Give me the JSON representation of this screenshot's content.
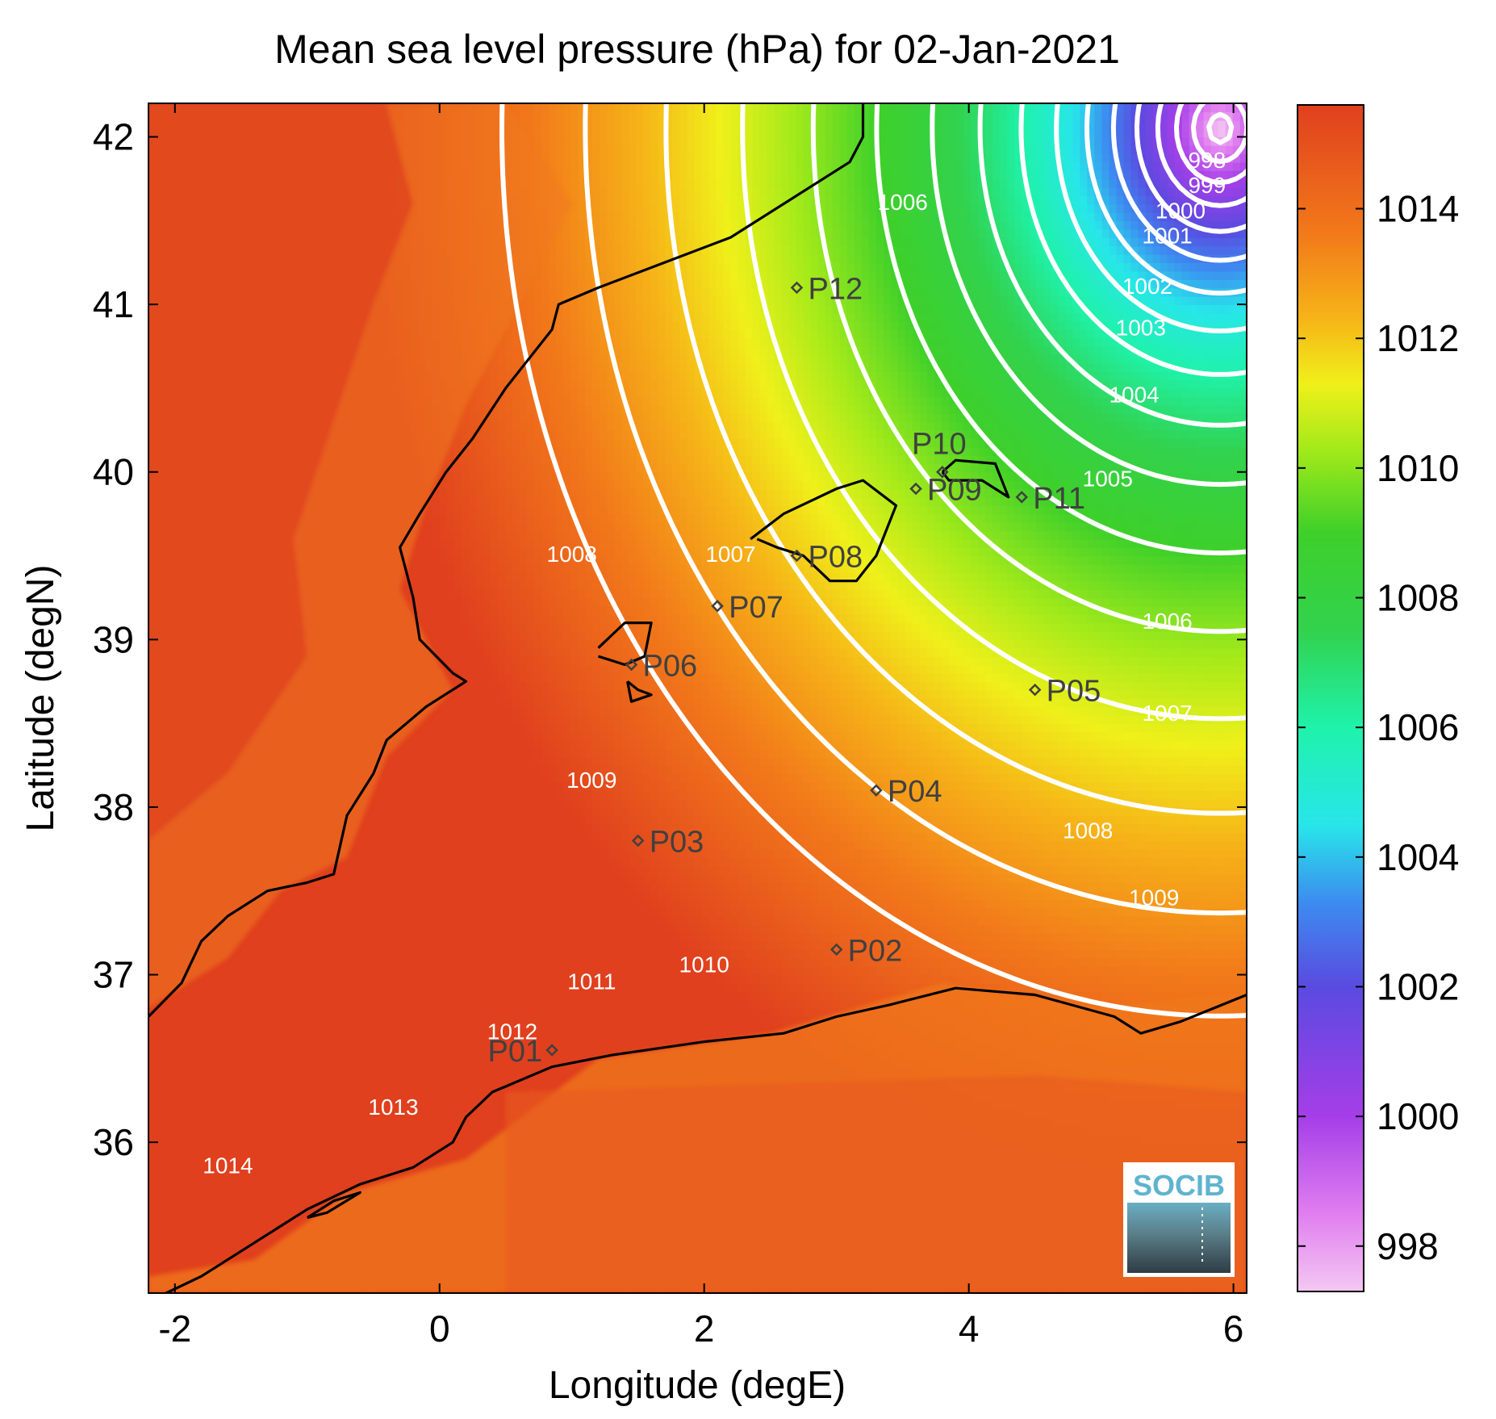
{
  "title": "Mean sea level pressure (hPa) for 02-Jan-2021",
  "x_axis": {
    "label": "Longitude (degE)",
    "range": [
      -2.2,
      6.1
    ],
    "ticks": [
      -2,
      0,
      2,
      4,
      6
    ],
    "tick_labels": [
      "-2",
      "0",
      "2",
      "4",
      "6"
    ]
  },
  "y_axis": {
    "label": "Latitude (degN)",
    "range": [
      35.1,
      42.2
    ],
    "ticks": [
      36,
      37,
      38,
      39,
      40,
      41,
      42
    ],
    "tick_labels": [
      "36",
      "37",
      "38",
      "39",
      "40",
      "41",
      "42"
    ]
  },
  "colorbar": {
    "range": [
      997.3,
      1015.6
    ],
    "ticks": [
      998,
      1000,
      1002,
      1004,
      1006,
      1008,
      1010,
      1012,
      1014
    ],
    "tick_labels": [
      "998",
      "1000",
      "1002",
      "1004",
      "1006",
      "1008",
      "1010",
      "1012",
      "1014"
    ],
    "colormap": [
      [
        997.3,
        "#f4c8f2"
      ],
      [
        998.5,
        "#e07ef0"
      ],
      [
        1000,
        "#a53ee8"
      ],
      [
        1002,
        "#5a4ae0"
      ],
      [
        1003.3,
        "#3c8cf0"
      ],
      [
        1004.5,
        "#28e6ea"
      ],
      [
        1006,
        "#1ff2aa"
      ],
      [
        1007.5,
        "#32d24e"
      ],
      [
        1009,
        "#3ed02a"
      ],
      [
        1010.3,
        "#a4ea1a"
      ],
      [
        1011.3,
        "#f0f01a"
      ],
      [
        1012.3,
        "#f6b418"
      ],
      [
        1013.6,
        "#f27a1a"
      ],
      [
        1015.6,
        "#e0401e"
      ]
    ]
  },
  "chart_data": {
    "type": "contour map",
    "title": "Mean sea level pressure (hPa) for 02-Jan-2021",
    "xlabel": "Longitude (degE)",
    "ylabel": "Latitude (degN)",
    "xlim": [
      -2.2,
      6.1
    ],
    "ylim": [
      35.1,
      42.2
    ],
    "units": "hPa",
    "contour_levels": [
      {
        "level": 998,
        "label": "998",
        "label_at": [
          5.8,
          41.85
        ]
      },
      {
        "level": 999,
        "label": "999",
        "label_at": [
          5.8,
          41.7
        ]
      },
      {
        "level": 1000,
        "label": "1000",
        "label_at": [
          5.6,
          41.55
        ]
      },
      {
        "level": 1001,
        "label": "1001",
        "label_at": [
          5.5,
          41.4
        ]
      },
      {
        "level": 1002,
        "label": "1002",
        "label_at": [
          5.35,
          41.1
        ]
      },
      {
        "level": 1003,
        "label": "1003",
        "label_at": [
          5.3,
          40.85
        ]
      },
      {
        "level": 1004,
        "label": "1004",
        "label_at": [
          5.25,
          40.45
        ]
      },
      {
        "level": 1005,
        "label": "1005",
        "label_at": [
          5.05,
          39.95
        ]
      },
      {
        "level": 1006,
        "label": "1006",
        "label_at": [
          5.5,
          39.1
        ]
      },
      {
        "level": 1006,
        "label": "1006",
        "label_at": [
          3.5,
          41.6
        ]
      },
      {
        "level": 1007,
        "label": "1007",
        "label_at": [
          5.5,
          38.55
        ]
      },
      {
        "level": 1007,
        "label": "1007",
        "label_at": [
          2.2,
          39.5
        ]
      },
      {
        "level": 1008,
        "label": "1008",
        "label_at": [
          4.9,
          37.85
        ]
      },
      {
        "level": 1008,
        "label": "1008",
        "label_at": [
          1.0,
          39.5
        ]
      },
      {
        "level": 1009,
        "label": "1009",
        "label_at": [
          5.4,
          37.45
        ]
      },
      {
        "level": 1009,
        "label": "1009",
        "label_at": [
          1.15,
          38.15
        ]
      },
      {
        "level": 1010,
        "label": "1010",
        "label_at": [
          2.0,
          37.05
        ]
      },
      {
        "level": 1011,
        "label": "1011",
        "label_at": [
          1.15,
          36.95
        ]
      },
      {
        "level": 1012,
        "label": "1012",
        "label_at": [
          0.55,
          36.65
        ]
      },
      {
        "level": 1013,
        "label": "1013",
        "label_at": [
          -0.35,
          36.2
        ]
      },
      {
        "level": 1014,
        "label": "1014",
        "label_at": [
          -1.6,
          35.85
        ]
      }
    ],
    "stations": [
      {
        "name": "P01",
        "lon": 0.85,
        "lat": 36.55
      },
      {
        "name": "P02",
        "lon": 3.0,
        "lat": 37.15
      },
      {
        "name": "P03",
        "lon": 1.5,
        "lat": 37.8
      },
      {
        "name": "P04",
        "lon": 3.3,
        "lat": 38.1
      },
      {
        "name": "P05",
        "lon": 4.5,
        "lat": 38.7
      },
      {
        "name": "P06",
        "lon": 1.45,
        "lat": 38.85
      },
      {
        "name": "P07",
        "lon": 2.1,
        "lat": 39.2
      },
      {
        "name": "P08",
        "lon": 2.7,
        "lat": 39.5
      },
      {
        "name": "P09",
        "lon": 3.6,
        "lat": 39.9
      },
      {
        "name": "P10",
        "lon": 3.8,
        "lat": 40.0
      },
      {
        "name": "P11",
        "lon": 4.4,
        "lat": 39.85
      },
      {
        "name": "P12",
        "lon": 2.7,
        "lat": 41.1
      }
    ]
  },
  "logo": {
    "text": "SOCIB"
  }
}
